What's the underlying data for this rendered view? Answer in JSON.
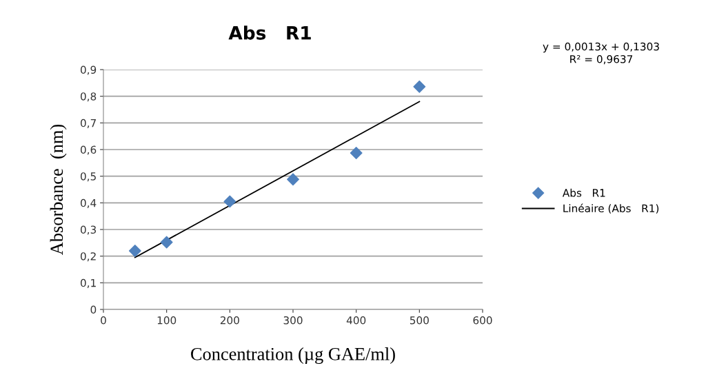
{
  "chart_data": {
    "type": "scatter",
    "title": "Abs   R1",
    "xlabel": "Concentration (µg GAE/ml)",
    "ylabel": "Absorbance  (nm)",
    "annotations": [
      "y = 0,0013x + 0,1303\nR² = 0,9637"
    ],
    "series": [
      {
        "name": "Abs   R1",
        "color": "#4f81bd",
        "marker": "diamond",
        "x": [
          50,
          100,
          200,
          300,
          400,
          500
        ],
        "values": [
          0.22,
          0.252,
          0.405,
          0.488,
          0.587,
          0.836
        ]
      },
      {
        "name": "Linéaire (Abs   R1)",
        "type": "line",
        "color": "#000000",
        "marker": "none",
        "line_style": "solid",
        "x": [
          50,
          500
        ],
        "values": [
          0.195,
          0.78
        ]
      }
    ],
    "xlim": [
      0,
      600
    ],
    "xticks": [
      0,
      100,
      200,
      300,
      400,
      500,
      600
    ],
    "ylim": [
      0,
      0.9
    ],
    "yticks": [
      {
        "value": 0,
        "label": "0"
      },
      {
        "value": 0.1,
        "label": "0,1"
      },
      {
        "value": 0.2,
        "label": "0,2"
      },
      {
        "value": 0.3,
        "label": "0,3"
      },
      {
        "value": 0.4,
        "label": "0,4"
      },
      {
        "value": 0.5,
        "label": "0,5"
      },
      {
        "value": 0.6,
        "label": "0,6"
      },
      {
        "value": 0.7,
        "label": "0,7"
      },
      {
        "value": 0.8,
        "label": "0,8"
      },
      {
        "value": 0.9,
        "label": "0,9"
      }
    ],
    "grid": "y",
    "legend": "right"
  }
}
